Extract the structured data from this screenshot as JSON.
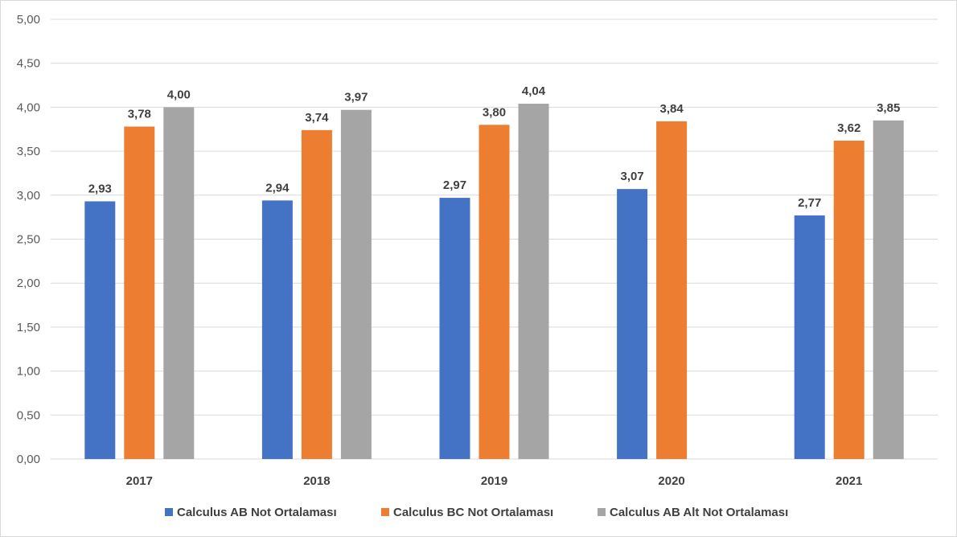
{
  "chart_data": {
    "type": "bar",
    "categories": [
      "2017",
      "2018",
      "2019",
      "2020",
      "2021"
    ],
    "series": [
      {
        "name": "Calculus AB Not Ortalaması",
        "color": "#4472c4",
        "values": [
          2.93,
          2.94,
          2.97,
          3.07,
          2.77
        ]
      },
      {
        "name": "Calculus BC Not Ortalaması",
        "color": "#ed7d31",
        "values": [
          3.78,
          3.74,
          3.8,
          3.84,
          3.62
        ]
      },
      {
        "name": "Calculus AB Alt Not Ortalaması",
        "color": "#a5a5a5",
        "values": [
          4.0,
          3.97,
          4.04,
          null,
          3.85
        ]
      }
    ],
    "yticks": [
      "0,00",
      "0,50",
      "1,00",
      "1,50",
      "2,00",
      "2,50",
      "3,00",
      "3,50",
      "4,00",
      "4,50",
      "5,00"
    ],
    "ylim": [
      0,
      5
    ],
    "grid": true,
    "legend_position": "bottom",
    "decimal_separator": ","
  }
}
